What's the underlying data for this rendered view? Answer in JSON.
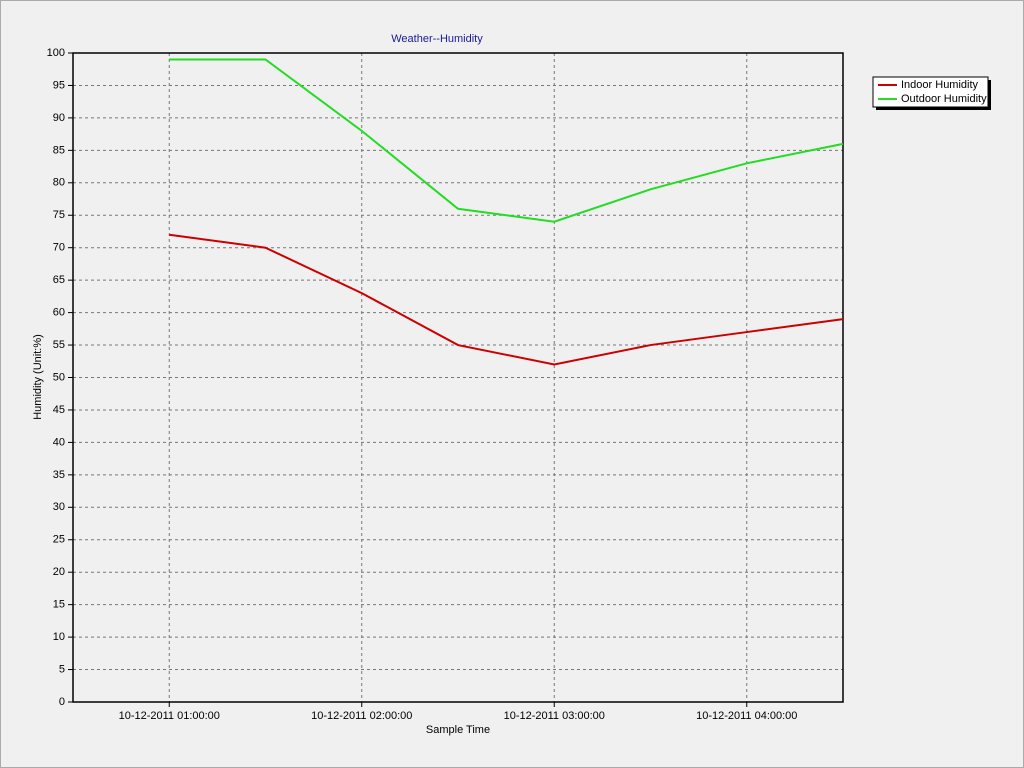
{
  "chart_data": {
    "type": "line",
    "title": "Weather--Humidity",
    "x_label": "Sample Time",
    "y_label": "Humidity (Unit:%)",
    "x": [
      "10-12-2011 01:00:00",
      "10-12-2011 01:30:00",
      "10-12-2011 02:00:00",
      "10-12-2011 02:30:00",
      "10-12-2011 03:00:00",
      "10-12-2011 03:30:00",
      "10-12-2011 04:00:00",
      "10-12-2011 04:30:00"
    ],
    "series": [
      {
        "name": "Indoor Humidity",
        "color": "#cc0000",
        "values": [
          72,
          70,
          63,
          55,
          52,
          55,
          57,
          59
        ]
      },
      {
        "name": "Outdoor Humidity",
        "color": "#22dd22",
        "values": [
          99,
          99,
          88,
          76,
          74,
          79,
          83,
          86
        ]
      }
    ],
    "xlim": [
      "10-12-2011 00:30:00",
      "10-12-2011 04:30:00"
    ],
    "xticks": [
      "10-12-2011 01:00:00",
      "10-12-2011 02:00:00",
      "10-12-2011 03:00:00",
      "10-12-2011 04:00:00"
    ],
    "ylim": [
      0,
      100
    ],
    "yticks": [
      0,
      5,
      10,
      15,
      20,
      25,
      30,
      35,
      40,
      45,
      50,
      55,
      60,
      65,
      70,
      75,
      80,
      85,
      90,
      95,
      100
    ],
    "grid": true,
    "legend": "upper right"
  }
}
